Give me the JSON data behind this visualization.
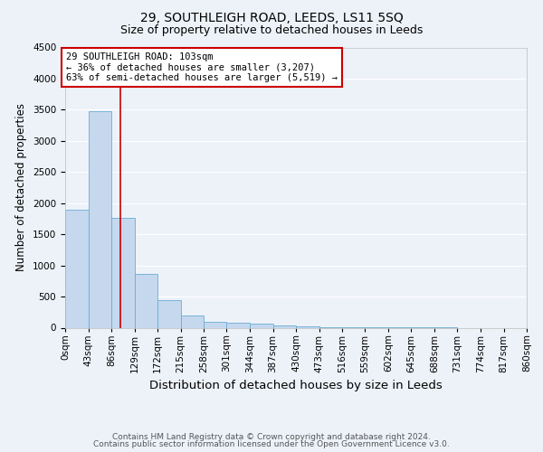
{
  "title1": "29, SOUTHLEIGH ROAD, LEEDS, LS11 5SQ",
  "title2": "Size of property relative to detached houses in Leeds",
  "xlabel": "Distribution of detached houses by size in Leeds",
  "ylabel": "Number of detached properties",
  "bin_labels": [
    "0sqm",
    "43sqm",
    "86sqm",
    "129sqm",
    "172sqm",
    "215sqm",
    "258sqm",
    "301sqm",
    "344sqm",
    "387sqm",
    "430sqm",
    "473sqm",
    "516sqm",
    "559sqm",
    "602sqm",
    "645sqm",
    "688sqm",
    "731sqm",
    "774sqm",
    "817sqm",
    "860sqm"
  ],
  "bin_edges": [
    0,
    43,
    86,
    129,
    172,
    215,
    258,
    301,
    344,
    387,
    430,
    473,
    516,
    559,
    602,
    645,
    688,
    731,
    774,
    817,
    860
  ],
  "bar_heights": [
    1900,
    3470,
    1760,
    870,
    440,
    200,
    100,
    80,
    60,
    40,
    20,
    10,
    5,
    3,
    2,
    1,
    1,
    0,
    0,
    0
  ],
  "bar_color": "#c5d8ee",
  "bar_edgecolor": "#6aadd5",
  "property_size": 103,
  "red_line_color": "#cc0000",
  "annotation_line1": "29 SOUTHLEIGH ROAD: 103sqm",
  "annotation_line2": "← 36% of detached houses are smaller (3,207)",
  "annotation_line3": "63% of semi-detached houses are larger (5,519) →",
  "annotation_box_color": "#cc0000",
  "ylim": [
    0,
    4500
  ],
  "yticks": [
    0,
    500,
    1000,
    1500,
    2000,
    2500,
    3000,
    3500,
    4000,
    4500
  ],
  "footnote1": "Contains HM Land Registry data © Crown copyright and database right 2024.",
  "footnote2": "Contains public sector information licensed under the Open Government Licence v3.0.",
  "background_color": "#edf2f9",
  "grid_color": "#ffffff",
  "title1_fontsize": 10,
  "title2_fontsize": 9,
  "xlabel_fontsize": 9.5,
  "ylabel_fontsize": 8.5,
  "tick_fontsize": 7.5,
  "footnote_fontsize": 6.5
}
